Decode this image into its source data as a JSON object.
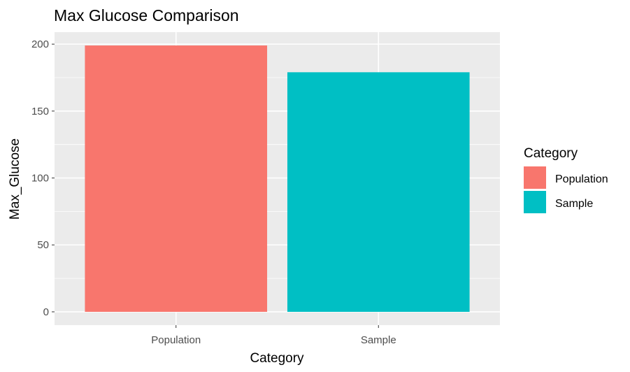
{
  "chart_data": {
    "type": "bar",
    "title": "Max Glucose Comparison",
    "xlabel": "Category",
    "ylabel": "Max_Glucose",
    "categories": [
      "Population",
      "Sample"
    ],
    "values": [
      199,
      179
    ],
    "colors": [
      "#F8766D",
      "#00BFC4"
    ],
    "ylim": [
      -9.95,
      208.95
    ],
    "yticks": [
      0,
      50,
      100,
      150,
      200
    ],
    "grid": true,
    "panel_background": "#EBEBEB",
    "legend": {
      "title": "Category",
      "position": "right",
      "entries": [
        {
          "label": "Population",
          "color": "#F8766D"
        },
        {
          "label": "Sample",
          "color": "#00BFC4"
        }
      ]
    }
  }
}
